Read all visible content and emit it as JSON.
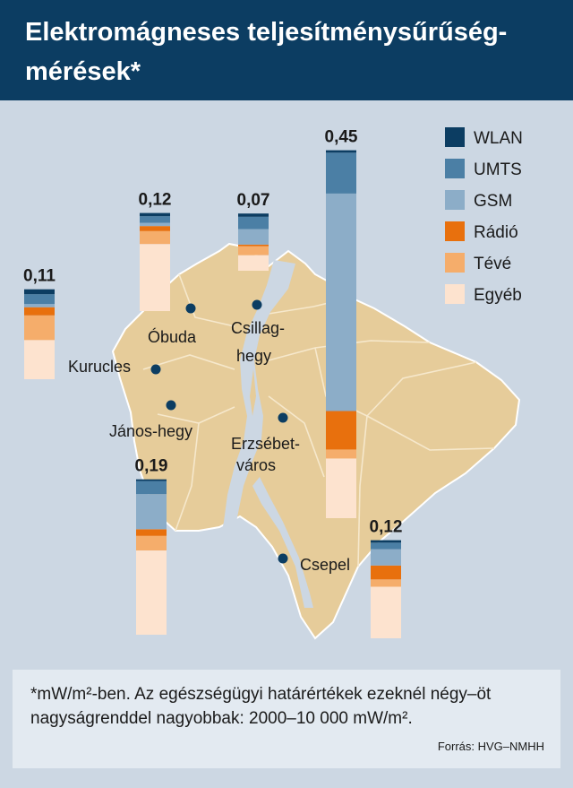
{
  "title": "Elektromágneses teljesítménysűrűség-mérések*",
  "note": "*mW/m²-ben. Az egészségügyi határértékek ezeknél négy–öt nagyságrenddel nagyobbak: 2000–10 000 mW/m².",
  "source": "Forrás: HVG–NMHH",
  "chart_data": {
    "type": "bar",
    "stacked": true,
    "unit": "mW/m²",
    "series": [
      {
        "name": "WLAN",
        "color": "#0c3d62"
      },
      {
        "name": "UMTS",
        "color": "#4b7fa5"
      },
      {
        "name": "GSM",
        "color": "#8cadc8"
      },
      {
        "name": "Rádió",
        "color": "#e8700d"
      },
      {
        "name": "Tévé",
        "color": "#f5ad6b"
      },
      {
        "name": "Egyéb",
        "color": "#fde3cf"
      }
    ],
    "bars": [
      {
        "place": "Kurucles",
        "label": "0,11",
        "total": 0.11,
        "values": [
          0.006,
          0.012,
          0.004,
          0.01,
          0.03,
          0.048
        ]
      },
      {
        "place": "Óbuda",
        "label": "0,12",
        "total": 0.12,
        "values": [
          0.004,
          0.008,
          0.004,
          0.006,
          0.016,
          0.082
        ]
      },
      {
        "place": "Csillaghegy",
        "label": "0,07",
        "total": 0.07,
        "values": [
          0.004,
          0.015,
          0.019,
          0.002,
          0.011,
          0.019
        ]
      },
      {
        "place": "Erzsébetváros",
        "label": "0,45",
        "total": 0.45,
        "values": [
          0.003,
          0.05,
          0.266,
          0.047,
          0.011,
          0.073
        ]
      },
      {
        "place": "János-hegy",
        "label": "0,19",
        "total": 0.19,
        "values": [
          0.002,
          0.016,
          0.043,
          0.008,
          0.018,
          0.103
        ]
      },
      {
        "place": "Csepel",
        "label": "0,12",
        "total": 0.12,
        "values": [
          0.003,
          0.008,
          0.02,
          0.017,
          0.009,
          0.063
        ]
      }
    ],
    "places": [
      "Óbuda",
      "Csillag-hegy",
      "Kurucles",
      "János-hegy",
      "Erzsébet-város",
      "Csepel"
    ]
  }
}
